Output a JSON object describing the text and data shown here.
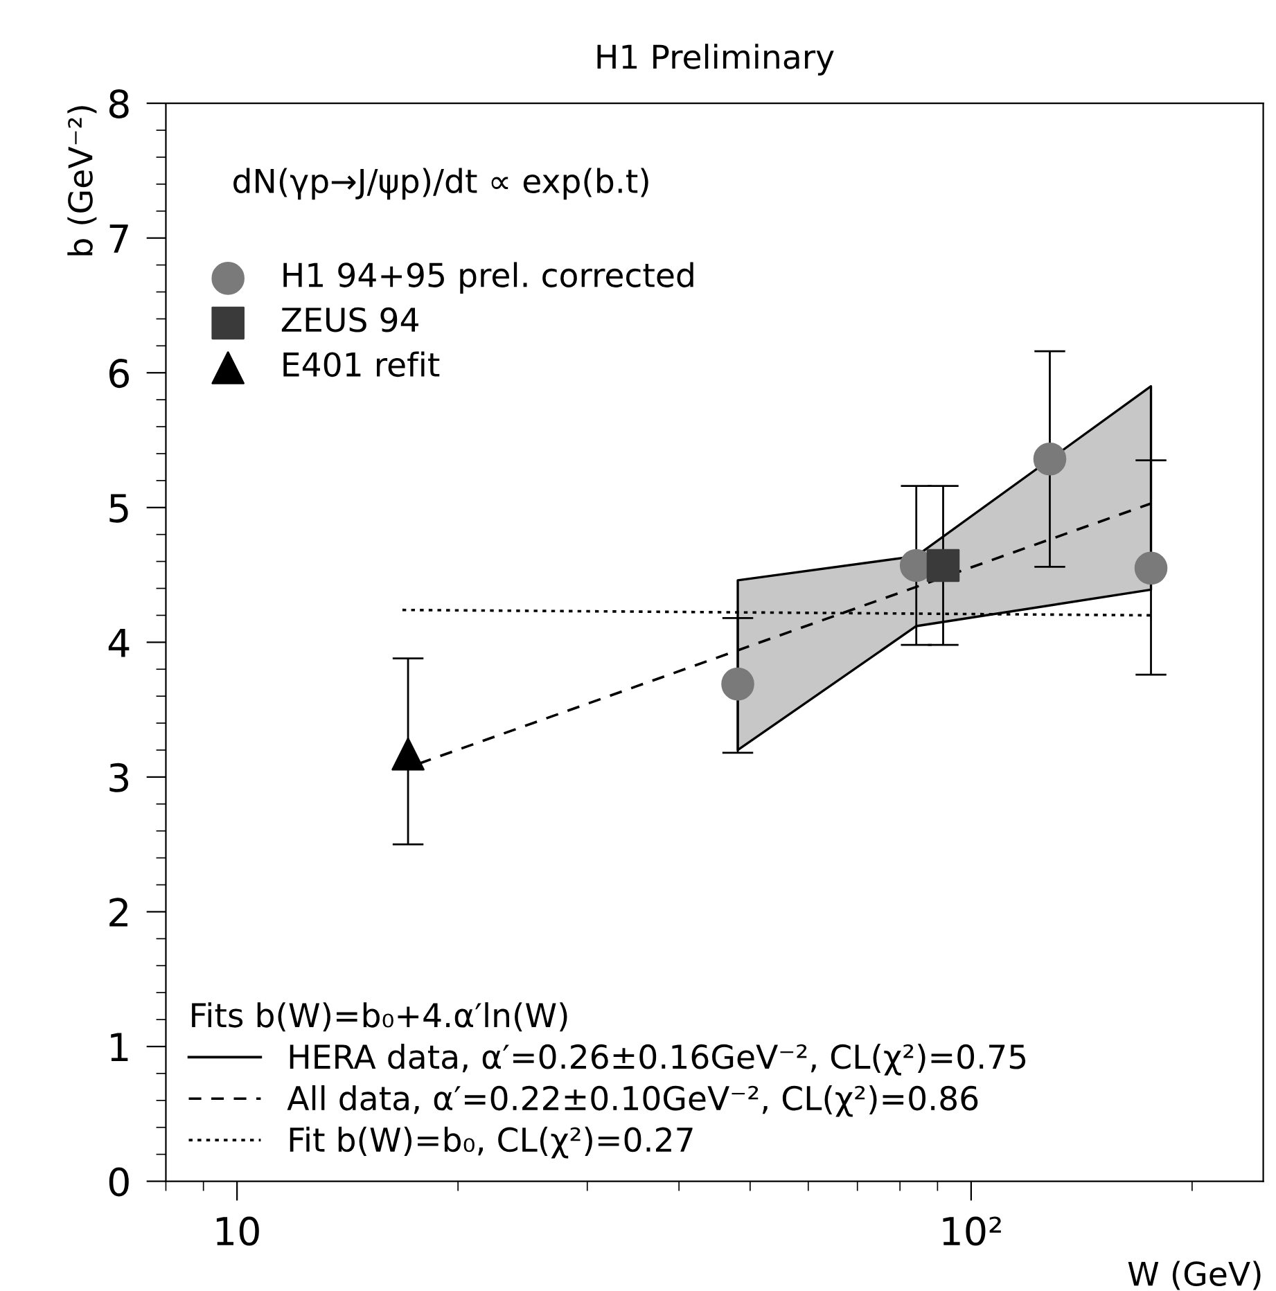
{
  "chart_data": {
    "type": "scatter",
    "title": "H1 Preliminary",
    "xlabel": "W (GeV)",
    "ylabel": "b (GeV⁻²)",
    "log": "x",
    "xlim": [
      8,
      250
    ],
    "xticks": [
      10,
      {
        "value": 100,
        "label": "10²"
      }
    ],
    "ylim": [
      0,
      8
    ],
    "yticks": [
      0,
      1,
      2,
      3,
      4,
      5,
      6,
      7,
      8
    ],
    "grid": false,
    "legend": "left",
    "annotations": [
      "dN(γp→J/ψp)/dt ∝ exp(b.t)"
    ],
    "legend_title": "Fits b(W)=b₀+4.α′ln(W)",
    "series": [
      {
        "type": "line",
        "name": "HERA data, α′=0.26±0.16GeV⁻², CL(χ²)=0.75",
        "color": "#000000",
        "line_style": "solid",
        "x": [
          48.1,
          84.2,
          175.8
        ],
        "values": [
          null,
          null,
          null
        ],
        "lower": [
          3.2,
          4.12,
          4.39
        ],
        "upper": [
          4.46,
          4.64,
          5.9
        ]
      },
      {
        "type": "line",
        "name": "All data, α′=0.22±0.10GeV⁻², CL(χ²)=0.86",
        "color": "#000000",
        "line_style": "dashed",
        "x": [
          17.7,
          175.8
        ],
        "values": [
          3.1,
          5.03
        ]
      },
      {
        "type": "line",
        "name": "Fit b(W)=b₀, CL(χ²)=0.27",
        "color": "#000000",
        "line_style": "dotted",
        "x": [
          16.8,
          175.8
        ],
        "values": [
          4.24,
          4.2
        ]
      },
      {
        "name": "H1 94+95 prel. corrected",
        "color": "#7a7a7a",
        "marker": "circle",
        "x": [
          48.1,
          84.2,
          128,
          175.8
        ],
        "values": [
          3.69,
          4.57,
          5.36,
          4.55
        ],
        "errors": [
          [
            3.18,
            4.18
          ],
          [
            3.98,
            5.16
          ],
          [
            4.56,
            6.16
          ],
          [
            3.76,
            5.35
          ]
        ]
      },
      {
        "name": "ZEUS 94",
        "color": "#3a3a3a",
        "marker": "square",
        "x": [
          91.6
        ],
        "values": [
          4.57
        ],
        "errors": [
          [
            3.98,
            5.16
          ]
        ]
      },
      {
        "name": "E401 refit",
        "color": "#000000",
        "marker": "triangle",
        "x": [
          17.1
        ],
        "values": [
          3.17
        ],
        "errors": [
          [
            2.5,
            3.88
          ]
        ]
      }
    ]
  }
}
